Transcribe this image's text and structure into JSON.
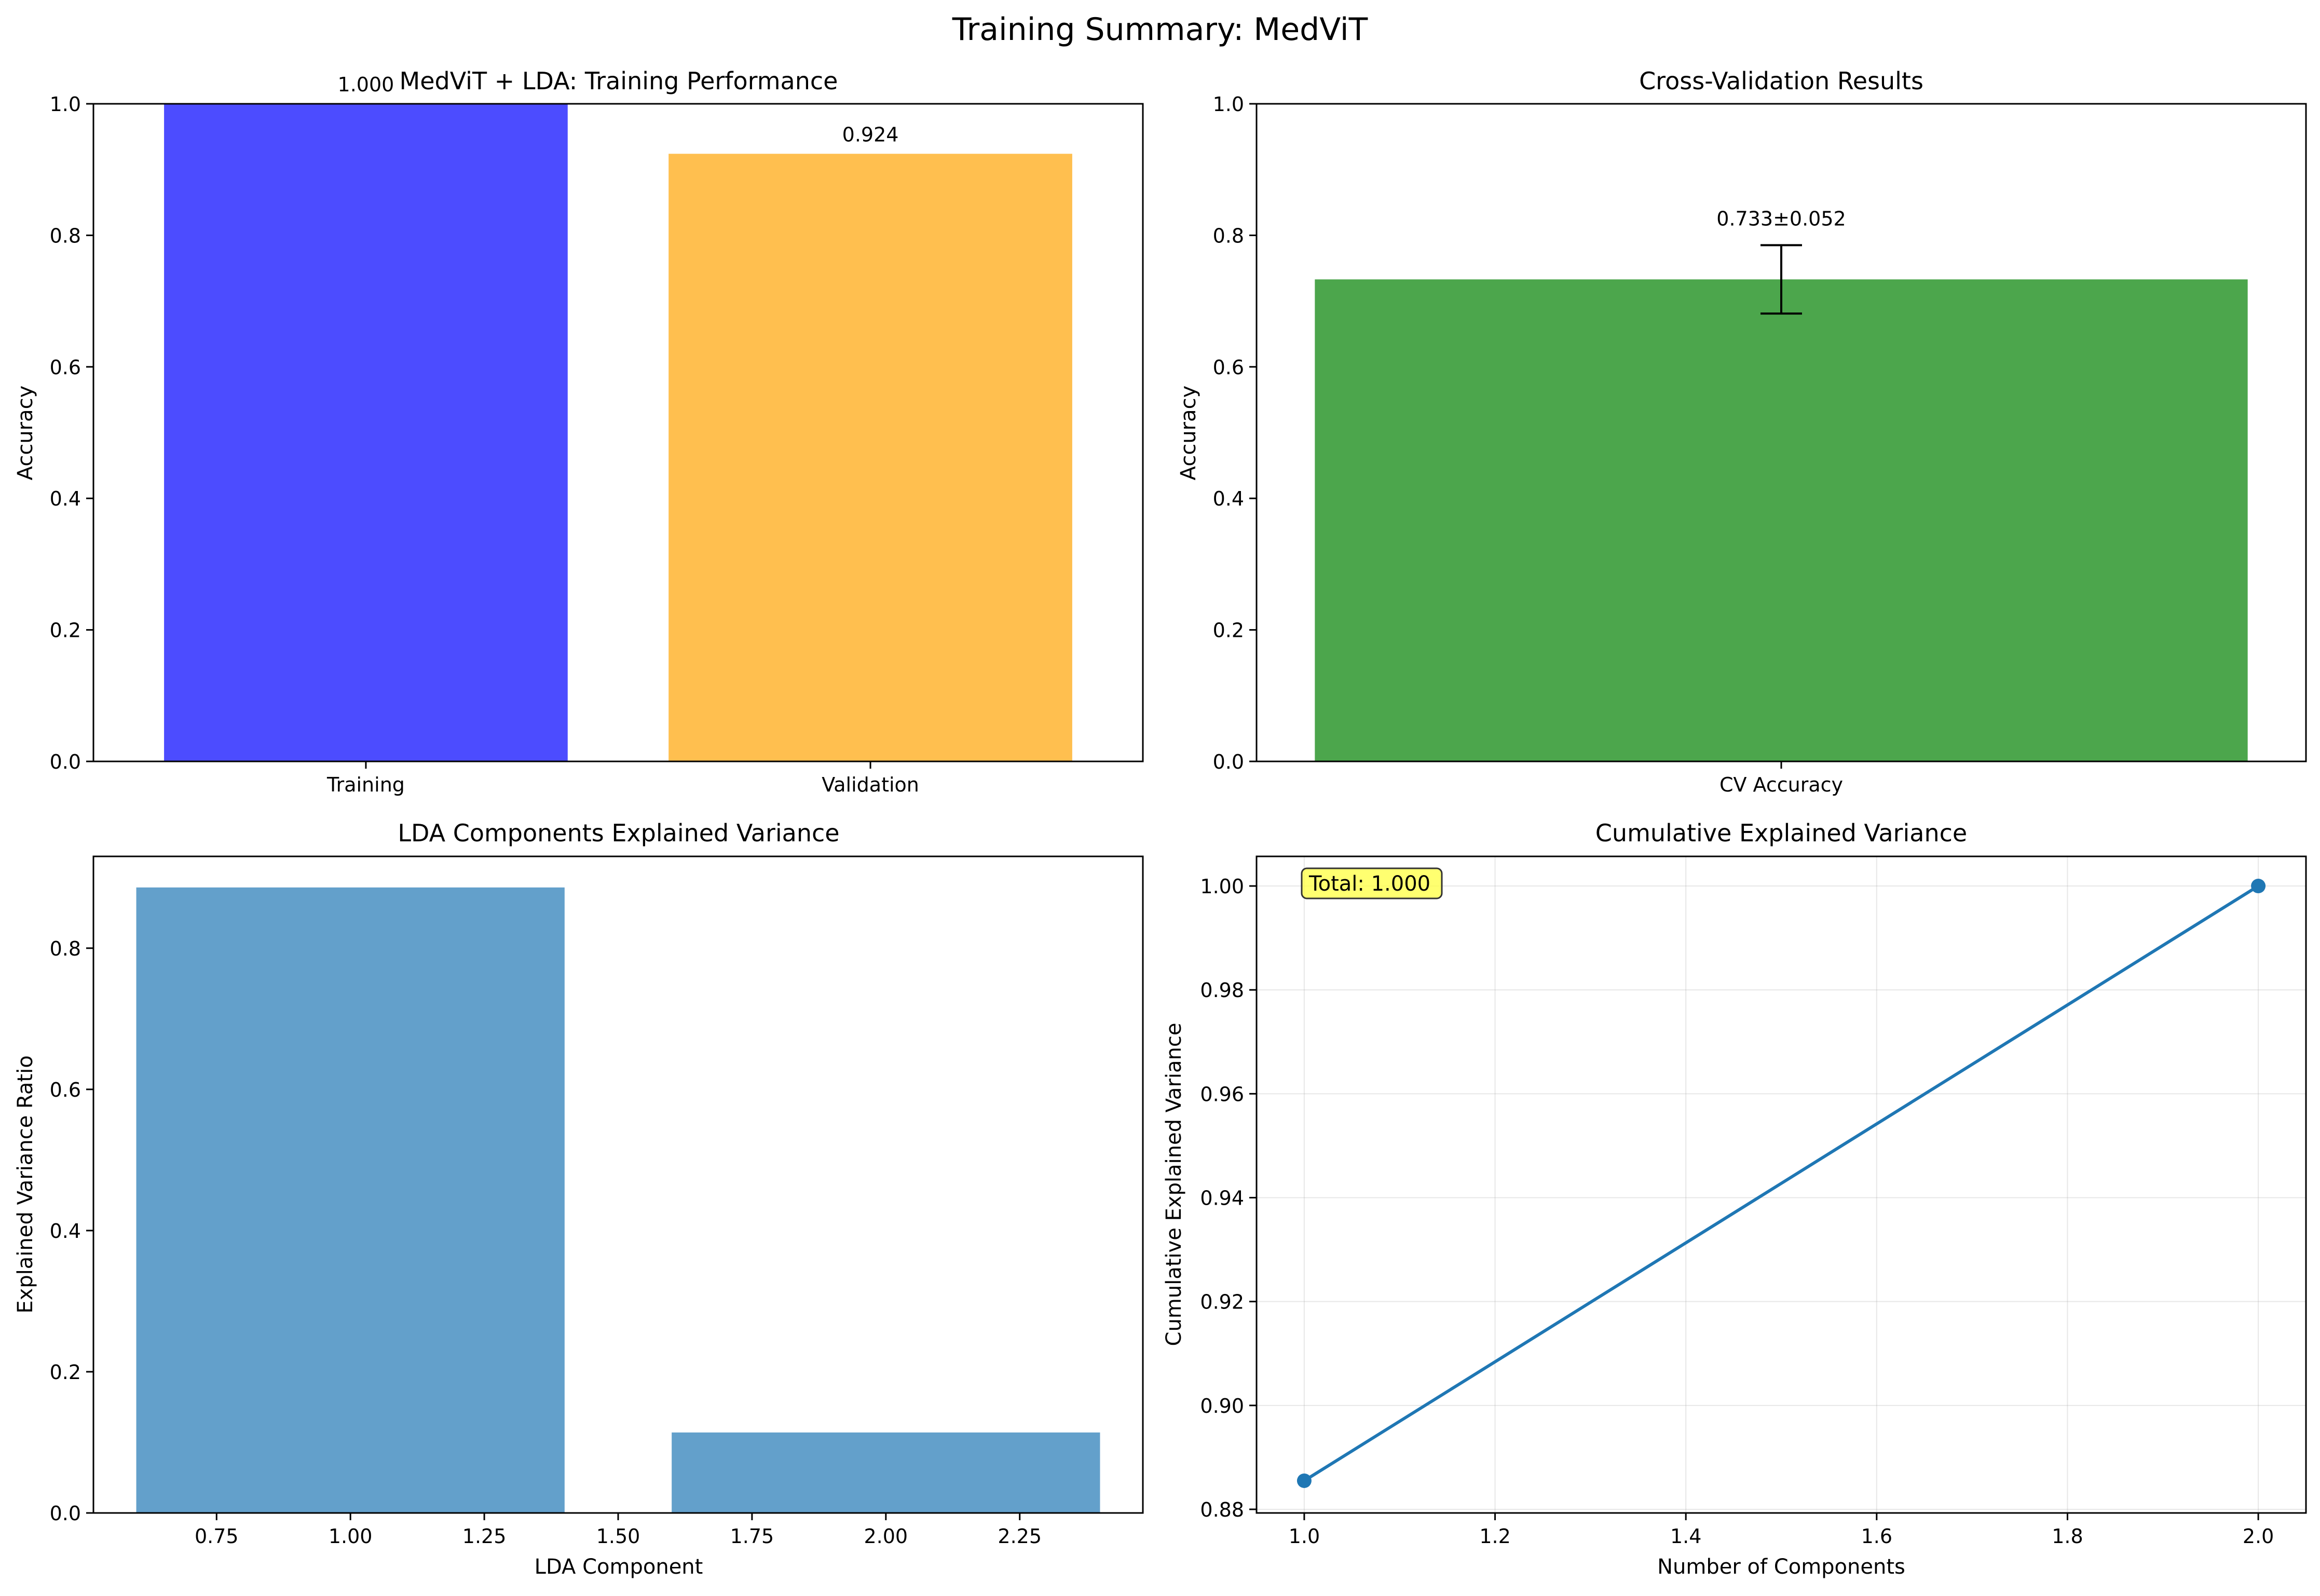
{
  "suptitle": "Training Summary: MedViT",
  "colors": {
    "training": "#4c4cff",
    "validation": "#ffbf4f",
    "cv": "#4ca64c",
    "lda": "#63a0cb",
    "line": "#1f77b4",
    "annotation_box": "#ffff4c"
  },
  "chart_data": [
    {
      "type": "bar",
      "title": "MedViT + LDA: Training Performance",
      "xlabel": "",
      "ylabel": "Accuracy",
      "categories": [
        "Training",
        "Validation"
      ],
      "values": [
        1.0,
        0.924
      ],
      "value_labels": [
        "1.000",
        "0.924"
      ],
      "ylim": [
        0,
        1.0
      ],
      "yticks": [
        "0.0",
        "0.2",
        "0.4",
        "0.6",
        "0.8",
        "1.0"
      ],
      "grid": false
    },
    {
      "type": "bar",
      "title": "Cross-Validation Results",
      "xlabel": "",
      "ylabel": "Accuracy",
      "categories": [
        "CV Accuracy"
      ],
      "values": [
        0.733
      ],
      "error": [
        0.052
      ],
      "value_labels": [
        "0.733±0.052"
      ],
      "ylim": [
        0,
        1.0
      ],
      "yticks": [
        "0.0",
        "0.2",
        "0.4",
        "0.6",
        "0.8",
        "1.0"
      ],
      "grid": false
    },
    {
      "type": "bar",
      "title": "LDA Components Explained Variance",
      "xlabel": "LDA Component",
      "ylabel": "Explained Variance Ratio",
      "x": [
        1,
        2
      ],
      "values": [
        0.886,
        0.114
      ],
      "xlim": [
        0.52,
        2.48
      ],
      "ylim": [
        0,
        0.93
      ],
      "xticks": [
        "0.75",
        "1.00",
        "1.25",
        "1.50",
        "1.75",
        "2.00",
        "2.25"
      ],
      "yticks": [
        "0.0",
        "0.2",
        "0.4",
        "0.6",
        "0.8"
      ],
      "grid": false
    },
    {
      "type": "line",
      "title": "Cumulative Explained Variance",
      "xlabel": "Number of Components",
      "ylabel": "Cumulative Explained Variance",
      "x": [
        1,
        2
      ],
      "values": [
        0.8855,
        1.0
      ],
      "xlim": [
        0.95,
        2.05
      ],
      "ylim": [
        0.8793,
        1.0057
      ],
      "xticks": [
        "1.0",
        "1.2",
        "1.4",
        "1.6",
        "1.8",
        "2.0"
      ],
      "yticks": [
        "0.88",
        "0.90",
        "0.92",
        "0.94",
        "0.96",
        "0.98",
        "1.00"
      ],
      "annotation": "Total: 1.000",
      "grid": true
    }
  ]
}
